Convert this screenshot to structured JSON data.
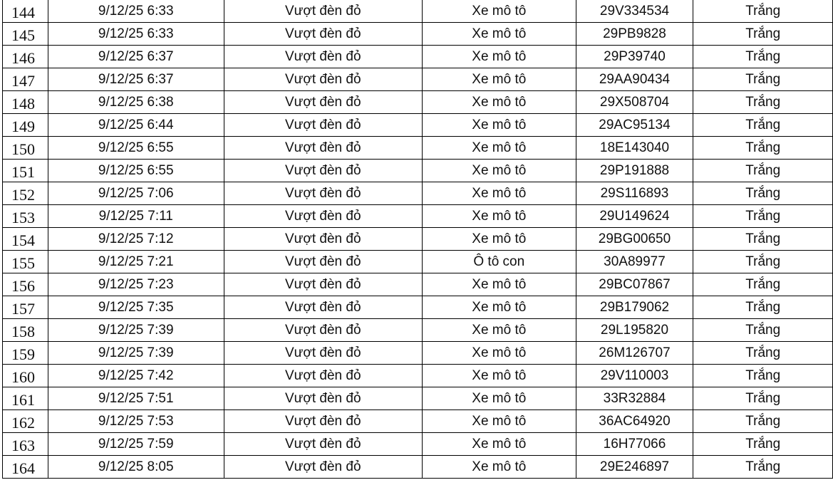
{
  "rows": [
    {
      "no": "144",
      "time": "9/12/25 6:33",
      "violation": "Vượt đèn đỏ",
      "vehicle": "Xe mô tô",
      "plate": "29V334534",
      "color": "Trắng"
    },
    {
      "no": "145",
      "time": "9/12/25 6:33",
      "violation": "Vượt đèn đỏ",
      "vehicle": "Xe mô tô",
      "plate": "29PB9828",
      "color": "Trắng"
    },
    {
      "no": "146",
      "time": "9/12/25 6:37",
      "violation": "Vượt đèn đỏ",
      "vehicle": "Xe mô tô",
      "plate": "29P39740",
      "color": "Trắng"
    },
    {
      "no": "147",
      "time": "9/12/25 6:37",
      "violation": "Vượt đèn đỏ",
      "vehicle": "Xe mô tô",
      "plate": "29AA90434",
      "color": "Trắng"
    },
    {
      "no": "148",
      "time": "9/12/25 6:38",
      "violation": "Vượt đèn đỏ",
      "vehicle": "Xe mô tô",
      "plate": "29X508704",
      "color": "Trắng"
    },
    {
      "no": "149",
      "time": "9/12/25 6:44",
      "violation": "Vượt đèn đỏ",
      "vehicle": "Xe mô tô",
      "plate": "29AC95134",
      "color": "Trắng"
    },
    {
      "no": "150",
      "time": "9/12/25 6:55",
      "violation": "Vượt đèn đỏ",
      "vehicle": "Xe mô tô",
      "plate": "18E143040",
      "color": "Trắng"
    },
    {
      "no": "151",
      "time": "9/12/25 6:55",
      "violation": "Vượt đèn đỏ",
      "vehicle": "Xe mô tô",
      "plate": "29P191888",
      "color": "Trắng"
    },
    {
      "no": "152",
      "time": "9/12/25 7:06",
      "violation": "Vượt đèn đỏ",
      "vehicle": "Xe mô tô",
      "plate": "29S116893",
      "color": "Trắng"
    },
    {
      "no": "153",
      "time": "9/12/25 7:11",
      "violation": "Vượt đèn đỏ",
      "vehicle": "Xe mô tô",
      "plate": "29U149624",
      "color": "Trắng"
    },
    {
      "no": "154",
      "time": "9/12/25 7:12",
      "violation": "Vượt đèn đỏ",
      "vehicle": "Xe mô tô",
      "plate": "29BG00650",
      "color": "Trắng"
    },
    {
      "no": "155",
      "time": "9/12/25 7:21",
      "violation": "Vượt đèn đỏ",
      "vehicle": "Ô tô con",
      "plate": "30A89977",
      "color": "Trắng"
    },
    {
      "no": "156",
      "time": "9/12/25 7:23",
      "violation": "Vượt đèn đỏ",
      "vehicle": "Xe mô tô",
      "plate": "29BC07867",
      "color": "Trắng"
    },
    {
      "no": "157",
      "time": "9/12/25 7:35",
      "violation": "Vượt đèn đỏ",
      "vehicle": "Xe mô tô",
      "plate": "29B179062",
      "color": "Trắng"
    },
    {
      "no": "158",
      "time": "9/12/25 7:39",
      "violation": "Vượt đèn đỏ",
      "vehicle": "Xe mô tô",
      "plate": "29L195820",
      "color": "Trắng"
    },
    {
      "no": "159",
      "time": "9/12/25 7:39",
      "violation": "Vượt đèn đỏ",
      "vehicle": "Xe mô tô",
      "plate": "26M126707",
      "color": "Trắng"
    },
    {
      "no": "160",
      "time": "9/12/25 7:42",
      "violation": "Vượt đèn đỏ",
      "vehicle": "Xe mô tô",
      "plate": "29V110003",
      "color": "Trắng"
    },
    {
      "no": "161",
      "time": "9/12/25 7:51",
      "violation": "Vượt đèn đỏ",
      "vehicle": "Xe mô tô",
      "plate": "33R32884",
      "color": "Trắng"
    },
    {
      "no": "162",
      "time": "9/12/25 7:53",
      "violation": "Vượt đèn đỏ",
      "vehicle": "Xe mô tô",
      "plate": "36AC64920",
      "color": "Trắng"
    },
    {
      "no": "163",
      "time": "9/12/25 7:59",
      "violation": "Vượt đèn đỏ",
      "vehicle": "Xe mô tô",
      "plate": "16H77066",
      "color": "Trắng"
    },
    {
      "no": "164",
      "time": "9/12/25 8:05",
      "violation": "Vượt đèn đỏ",
      "vehicle": "Xe mô tô",
      "plate": "29E246897",
      "color": "Trắng"
    }
  ]
}
